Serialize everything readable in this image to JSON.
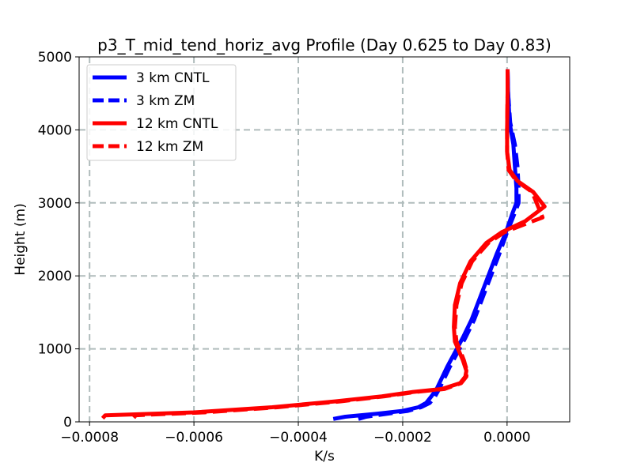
{
  "chart_data": {
    "type": "line",
    "title": "p3_T_mid_tend_horiz_avg Profile (Day 0.625 to Day 0.83)",
    "xlabel": "K/s",
    "ylabel": "Height (m)",
    "xlim": [
      -0.00082,
      0.00012
    ],
    "ylim": [
      0,
      5000
    ],
    "x_ticks": [
      -0.0008,
      -0.0006,
      -0.0004,
      -0.0002,
      0.0
    ],
    "x_tick_labels": [
      "−0.0008",
      "−0.0006",
      "−0.0004",
      "−0.0002",
      "0.0000"
    ],
    "y_ticks": [
      0,
      1000,
      2000,
      3000,
      4000,
      5000
    ],
    "y_tick_labels": [
      "0",
      "1000",
      "2000",
      "3000",
      "4000",
      "5000"
    ],
    "grid": true,
    "legend_position": "top-left",
    "series": [
      {
        "name": "3 km CNTL",
        "color": "#0000ff",
        "linestyle": "solid",
        "points": [
          [
            -0.000333,
            40
          ],
          [
            -0.00031,
            70
          ],
          [
            -0.00025,
            110
          ],
          [
            -0.0002,
            150
          ],
          [
            -0.00017,
            200
          ],
          [
            -0.000155,
            260
          ],
          [
            -0.000145,
            350
          ],
          [
            -0.000135,
            450
          ],
          [
            -0.000125,
            600
          ],
          [
            -0.000115,
            750
          ],
          [
            -0.0001,
            950
          ],
          [
            -8.5e-05,
            1150
          ],
          [
            -6.8e-05,
            1400
          ],
          [
            -5.2e-05,
            1700
          ],
          [
            -3.6e-05,
            2000
          ],
          [
            -2e-05,
            2300
          ],
          [
            -2e-06,
            2600
          ],
          [
            1e-05,
            2850
          ],
          [
            1.8e-05,
            3000
          ],
          [
            1.8e-05,
            3200
          ],
          [
            1.5e-05,
            3500
          ],
          [
            1.2e-05,
            3800
          ],
          [
            5e-06,
            4100
          ],
          [
            2e-06,
            4500
          ],
          [
            1e-06,
            4830
          ]
        ]
      },
      {
        "name": "3 km ZM",
        "color": "#0000ff",
        "linestyle": "dashed",
        "points": [
          [
            -0.000285,
            40
          ],
          [
            -0.00027,
            70
          ],
          [
            -0.00023,
            110
          ],
          [
            -0.00019,
            150
          ],
          [
            -0.000165,
            200
          ],
          [
            -0.000148,
            260
          ],
          [
            -0.000138,
            350
          ],
          [
            -0.00013,
            450
          ],
          [
            -0.00012,
            600
          ],
          [
            -0.00011,
            750
          ],
          [
            -9.5e-05,
            950
          ],
          [
            -8e-05,
            1150
          ],
          [
            -6.3e-05,
            1400
          ],
          [
            -4.7e-05,
            1700
          ],
          [
            -3.1e-05,
            2000
          ],
          [
            -1.5e-05,
            2300
          ],
          [
            0.0,
            2600
          ],
          [
            1.4e-05,
            2850
          ],
          [
            2.2e-05,
            3000
          ],
          [
            2.2e-05,
            3200
          ],
          [
            2e-05,
            3500
          ],
          [
            1.5e-05,
            3800
          ],
          [
            6e-06,
            4100
          ],
          [
            2e-06,
            4500
          ],
          [
            1e-06,
            4830
          ]
        ]
      },
      {
        "name": "12 km CNTL",
        "color": "#ff0000",
        "linestyle": "solid",
        "points": [
          [
            -0.000775,
            50
          ],
          [
            -0.00077,
            90
          ],
          [
            -0.0006,
            130
          ],
          [
            -0.00045,
            200
          ],
          [
            -0.00033,
            280
          ],
          [
            -0.00024,
            350
          ],
          [
            -0.00018,
            410
          ],
          [
            -0.000125,
            450
          ],
          [
            -9e-05,
            530
          ],
          [
            -8e-05,
            620
          ],
          [
            -7.8e-05,
            700
          ],
          [
            -8.5e-05,
            850
          ],
          [
            -0.0001,
            1100
          ],
          [
            -0.000102,
            1300
          ],
          [
            -0.0001,
            1600
          ],
          [
            -9e-05,
            1900
          ],
          [
            -7e-05,
            2200
          ],
          [
            -4e-05,
            2450
          ],
          [
            -1e-05,
            2600
          ],
          [
            3.5e-05,
            2750
          ],
          [
            7.2e-05,
            2950
          ],
          [
            5e-05,
            3150
          ],
          [
            2e-05,
            3300
          ],
          [
            5e-06,
            3450
          ],
          [
            0.0,
            3700
          ],
          [
            0.0,
            4000
          ],
          [
            1e-06,
            4500
          ],
          [
            1e-06,
            4830
          ]
        ]
      },
      {
        "name": "12 km ZM",
        "color": "#ff0000",
        "linestyle": "dashed",
        "points": [
          [
            -0.00071,
            60
          ],
          [
            -0.000715,
            90
          ],
          [
            -0.00058,
            130
          ],
          [
            -0.00044,
            200
          ],
          [
            -0.00032,
            280
          ],
          [
            -0.000235,
            350
          ],
          [
            -0.000175,
            410
          ],
          [
            -0.00012,
            450
          ],
          [
            -8.8e-05,
            530
          ],
          [
            -7.8e-05,
            620
          ],
          [
            -7.7e-05,
            700
          ],
          [
            -8.3e-05,
            850
          ],
          [
            -9.7e-05,
            1100
          ],
          [
            -0.0001,
            1300
          ],
          [
            -9.7e-05,
            1600
          ],
          [
            -8.7e-05,
            1900
          ],
          [
            -6.7e-05,
            2200
          ],
          [
            -3.6e-05,
            2450
          ],
          [
            -5e-06,
            2600
          ],
          [
            3.8e-05,
            2720
          ],
          [
            6.8e-05,
            2800
          ],
          [
            4.8e-05,
            3150
          ],
          [
            1.8e-05,
            3300
          ],
          [
            3e-06,
            3450
          ],
          [
            0.0,
            3700
          ],
          [
            0.0,
            4000
          ],
          [
            1e-06,
            4500
          ],
          [
            1e-06,
            4830
          ]
        ]
      }
    ]
  }
}
